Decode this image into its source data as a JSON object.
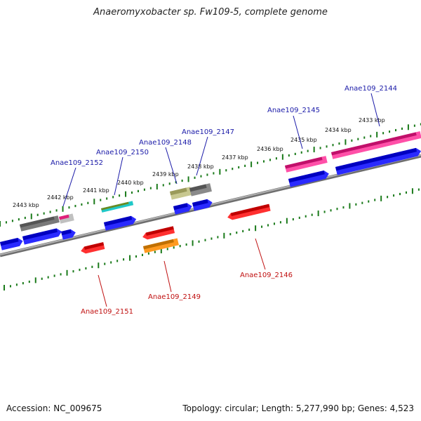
{
  "title": "Anaeromyxobacter sp. Fw109-5, complete genome",
  "accession": "Accession: NC_009675",
  "topology": "Topology: circular; Length: 5,277,990 bp; Genes: 4,523",
  "colors": {
    "axis": "#8a8a8a",
    "tick": "#1a7a1a",
    "forward_label": "#1a1aa8",
    "reverse_label": "#c01010",
    "cds": "#1010e0",
    "reverse_cds": "#e01010"
  },
  "kbp_ticks": [
    {
      "text": "2443 kbp"
    },
    {
      "text": "2442 kbp"
    },
    {
      "text": "2441 kbp"
    },
    {
      "text": "2440 kbp"
    },
    {
      "text": "2439 kbp"
    },
    {
      "text": "2438 kbp"
    },
    {
      "text": "2437 kbp"
    },
    {
      "text": "2436 kbp"
    },
    {
      "text": "2435 kbp"
    },
    {
      "text": "2434 kbp"
    },
    {
      "text": "2433 kbp"
    }
  ],
  "gene_labels": [
    {
      "text": "Anae109_2152",
      "strand": "forward"
    },
    {
      "text": "Anae109_2150",
      "strand": "forward"
    },
    {
      "text": "Anae109_2148",
      "strand": "forward"
    },
    {
      "text": "Anae109_2147",
      "strand": "forward"
    },
    {
      "text": "Anae109_2145",
      "strand": "forward"
    },
    {
      "text": "Anae109_2144",
      "strand": "forward"
    },
    {
      "text": "Anae109_2151",
      "strand": "reverse"
    },
    {
      "text": "Anae109_2149",
      "strand": "reverse"
    },
    {
      "text": "Anae109_2146",
      "strand": "reverse"
    }
  ]
}
